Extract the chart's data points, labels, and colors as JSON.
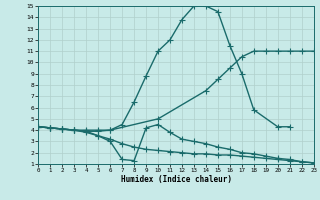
{
  "title": "",
  "xlabel": "Humidex (Indice chaleur)",
  "xlim": [
    0,
    23
  ],
  "ylim": [
    1,
    15
  ],
  "xticks": [
    0,
    1,
    2,
    3,
    4,
    5,
    6,
    7,
    8,
    9,
    10,
    11,
    12,
    13,
    14,
    15,
    16,
    17,
    18,
    19,
    20,
    21,
    22,
    23
  ],
  "yticks": [
    1,
    2,
    3,
    4,
    5,
    6,
    7,
    8,
    9,
    10,
    11,
    12,
    13,
    14,
    15
  ],
  "background_color": "#c8eae8",
  "grid_color": "#b0d0cc",
  "line_color": "#1a6b6b",
  "line_width": 1.0,
  "marker": "+",
  "marker_size": 4,
  "lines": [
    {
      "x": [
        0,
        1,
        2,
        3,
        4,
        5,
        6,
        7,
        8,
        9,
        10,
        11,
        12,
        13,
        14,
        15,
        16,
        17,
        18,
        20,
        21
      ],
      "y": [
        4.3,
        4.2,
        4.1,
        4.0,
        3.9,
        3.9,
        4.0,
        4.5,
        6.5,
        8.8,
        11.0,
        12.0,
        13.8,
        15.0,
        15.0,
        14.5,
        11.5,
        9.0,
        5.8,
        4.3,
        4.3
      ]
    },
    {
      "x": [
        0,
        1,
        2,
        3,
        4,
        5,
        6,
        10,
        14,
        15,
        16,
        17,
        18,
        19,
        20,
        21,
        22,
        23
      ],
      "y": [
        4.3,
        4.2,
        4.1,
        4.0,
        4.0,
        4.0,
        4.0,
        5.0,
        7.5,
        8.5,
        9.5,
        10.5,
        11.0,
        11.0,
        11.0,
        11.0,
        11.0,
        11.0
      ]
    },
    {
      "x": [
        0,
        1,
        2,
        3,
        4,
        5,
        6,
        7,
        8,
        9,
        10,
        11,
        12,
        13,
        14,
        15,
        16,
        17,
        18,
        19,
        20,
        21,
        22,
        23
      ],
      "y": [
        4.3,
        4.2,
        4.1,
        4.0,
        3.8,
        3.5,
        3.2,
        2.8,
        2.5,
        2.3,
        2.2,
        2.1,
        2.0,
        1.9,
        1.9,
        1.8,
        1.8,
        1.7,
        1.6,
        1.5,
        1.4,
        1.3,
        1.2,
        1.1
      ]
    },
    {
      "x": [
        0,
        1,
        2,
        3,
        4,
        5,
        6,
        7,
        8,
        9,
        10,
        11,
        12,
        13,
        14,
        15,
        16,
        17,
        18,
        19,
        20,
        21,
        22,
        23
      ],
      "y": [
        4.3,
        4.2,
        4.1,
        4.0,
        3.9,
        3.5,
        3.0,
        1.4,
        1.3,
        4.2,
        4.5,
        3.8,
        3.2,
        3.0,
        2.8,
        2.5,
        2.3,
        2.0,
        1.9,
        1.7,
        1.5,
        1.4,
        1.2,
        1.1
      ]
    }
  ]
}
